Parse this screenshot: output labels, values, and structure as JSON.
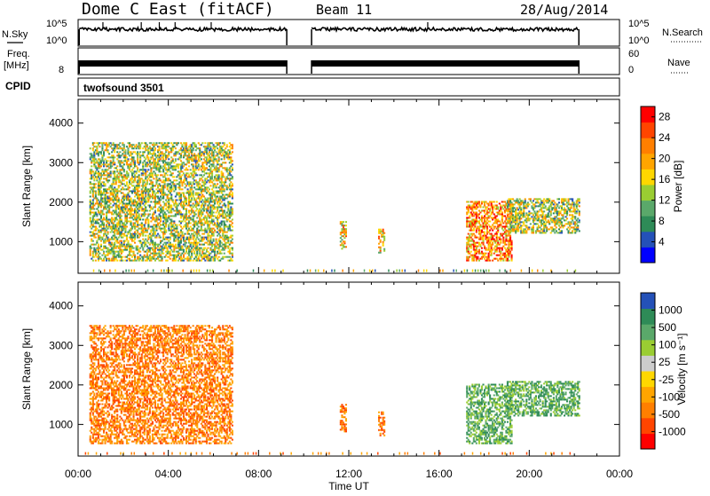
{
  "header": {
    "station": "Dome C East (fitACF)",
    "beam": "Beam 11",
    "date": "28/Aug/2014"
  },
  "noise_panel": {
    "left_label": "N.Sky",
    "left_ticks": [
      "10^5",
      "10^0"
    ],
    "right_ticks": [
      "10^5",
      "10^0"
    ],
    "right_label": "N.Search"
  },
  "freq_panel": {
    "left_label_line1": "Freq.",
    "left_label_line2": "[MHz]",
    "left_tick": "8",
    "right_ticks": [
      "60",
      "0"
    ],
    "right_label": "Nave"
  },
  "cpid": {
    "label": "CPID",
    "value": "twofsound 3501"
  },
  "colors": {
    "power_scale": [
      "#0000ff",
      "#2451b8",
      "#2e8b57",
      "#5aa86a",
      "#9acd32",
      "#ffd700",
      "#ffa500",
      "#ff7f00",
      "#ff4500",
      "#ff0000"
    ],
    "velocity_scale": [
      "#ff0000",
      "#ff4500",
      "#ff7f00",
      "#ffa500",
      "#ffd700",
      "#cccccc",
      "#9acd32",
      "#5aa86a",
      "#2e8b57",
      "#2451b8"
    ]
  },
  "chart_data": [
    {
      "type": "heatmap",
      "ylabel": "Slant Range [km]",
      "y_ticks": [
        1000,
        2000,
        3000,
        4000
      ],
      "ylim": [
        200,
        4600
      ],
      "x_ticks": [
        "00:00",
        "04:00",
        "08:00",
        "12:00",
        "16:00",
        "20:00",
        "00:00"
      ],
      "xlim_hours": [
        0,
        24
      ],
      "colorbar": {
        "label": "Power [dB]",
        "ticks": [
          4,
          8,
          12,
          16,
          20,
          24,
          28
        ],
        "range": [
          0,
          30
        ]
      },
      "echo_regions": [
        {
          "t_start": 0.5,
          "t_end": 6.8,
          "r_min": 500,
          "r_max": 3500,
          "mean_value": 14
        },
        {
          "t_start": 11.6,
          "t_end": 11.9,
          "r_min": 800,
          "r_max": 1500,
          "mean_value": 18
        },
        {
          "t_start": 13.3,
          "t_end": 13.6,
          "r_min": 700,
          "r_max": 1300,
          "mean_value": 18
        },
        {
          "t_start": 17.2,
          "t_end": 19.2,
          "r_min": 500,
          "r_max": 2000,
          "mean_value": 22
        },
        {
          "t_start": 19.0,
          "t_end": 22.2,
          "r_min": 1200,
          "r_max": 2100,
          "mean_value": 14
        }
      ]
    },
    {
      "type": "heatmap",
      "ylabel": "Slant Range [km]",
      "xlabel": "Time UT",
      "y_ticks": [
        1000,
        2000,
        3000,
        4000
      ],
      "ylim": [
        200,
        4600
      ],
      "x_ticks": [
        "00:00",
        "04:00",
        "08:00",
        "12:00",
        "16:00",
        "20:00",
        "00:00"
      ],
      "xlim_hours": [
        0,
        24
      ],
      "colorbar": {
        "label": "Velocity [m s⁻¹]",
        "ticks": [
          "1000",
          "500",
          "100",
          "25",
          "-25",
          "-100",
          "-500",
          "-1000"
        ]
      },
      "echo_regions": [
        {
          "t_start": 0.5,
          "t_end": 6.8,
          "r_min": 500,
          "r_max": 3500,
          "mean_value": -150
        },
        {
          "t_start": 11.6,
          "t_end": 11.9,
          "r_min": 800,
          "r_max": 1500,
          "mean_value": -150
        },
        {
          "t_start": 13.3,
          "t_end": 13.6,
          "r_min": 700,
          "r_max": 1300,
          "mean_value": -200
        },
        {
          "t_start": 17.2,
          "t_end": 19.2,
          "r_min": 500,
          "r_max": 2000,
          "mean_value": 200
        },
        {
          "t_start": 19.0,
          "t_end": 22.2,
          "r_min": 1200,
          "r_max": 2100,
          "mean_value": 300
        }
      ]
    }
  ]
}
